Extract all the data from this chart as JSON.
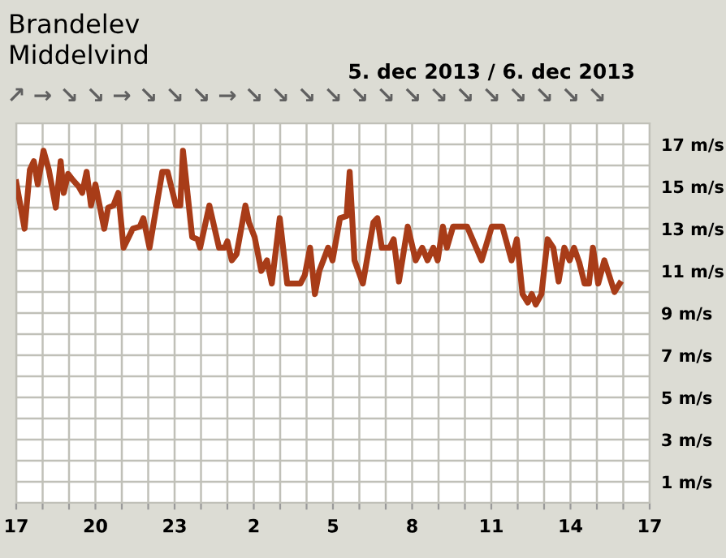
{
  "chart_data": {
    "type": "line",
    "title": "Brandelev",
    "subtitle": "Middelvind",
    "annotations": [
      "5. dec 2013 / 6. dec 2013",
      "↗",
      "→",
      "↘",
      "↘",
      "→",
      "↘",
      "↘",
      "↘",
      "→",
      "↘",
      "↘",
      "↘",
      "↘",
      "↘",
      "↘",
      "↘",
      "↘",
      "↘",
      "↘",
      "↘",
      "↘",
      "↘",
      "↘"
    ],
    "x": [
      "2013-12-05T17:00",
      "2013-12-05T17:19",
      "2013-12-05T17:31",
      "2013-12-05T17:40",
      "2013-12-05T17:49",
      "2013-12-05T18:02",
      "2013-12-05T18:14",
      "2013-12-05T18:30",
      "2013-12-05T18:41",
      "2013-12-05T18:48",
      "2013-12-05T18:58",
      "2013-12-05T19:09",
      "2013-12-05T19:22",
      "2013-12-05T19:30",
      "2013-12-05T19:40",
      "2013-12-05T19:50",
      "2013-12-05T20:00",
      "2013-12-05T20:20",
      "2013-12-05T20:29",
      "2013-12-05T20:41",
      "2013-12-05T20:52",
      "2013-12-05T21:04",
      "2013-12-05T21:25",
      "2013-12-05T21:41",
      "2013-12-05T21:49",
      "2013-12-05T22:03",
      "2013-12-05T22:32",
      "2013-12-05T22:44",
      "2013-12-05T23:03",
      "2013-12-05T23:13",
      "2013-12-05T23:19",
      "2013-12-05T23:40",
      "2013-12-05T23:52",
      "2013-12-05T23:58",
      "2013-12-06T00:19",
      "2013-12-06T00:41",
      "2013-12-06T00:54",
      "2013-12-06T01:00",
      "2013-12-06T01:10",
      "2013-12-06T01:21",
      "2013-12-06T01:41",
      "2013-12-06T01:49",
      "2013-12-06T02:02",
      "2013-12-06T02:17",
      "2013-12-06T02:30",
      "2013-12-06T02:41",
      "2013-12-06T02:59",
      "2013-12-06T03:16",
      "2013-12-06T03:46",
      "2013-12-06T03:56",
      "2013-12-06T04:08",
      "2013-12-06T04:19",
      "2013-12-06T04:29",
      "2013-12-06T04:49",
      "2013-12-06T04:59",
      "2013-12-06T05:16",
      "2013-12-06T05:31",
      "2013-12-06T05:38",
      "2013-12-06T05:49",
      "2013-12-06T06:08",
      "2013-12-06T06:32",
      "2013-12-06T06:41",
      "2013-12-06T06:51",
      "2013-12-06T07:09",
      "2013-12-06T07:18",
      "2013-12-06T07:30",
      "2013-12-06T07:50",
      "2013-12-06T08:08",
      "2013-12-06T08:23",
      "2013-12-06T08:35",
      "2013-12-06T08:48",
      "2013-12-06T08:58",
      "2013-12-06T09:10",
      "2013-12-06T09:19",
      "2013-12-06T09:33",
      "2013-12-06T10:05",
      "2013-12-06T10:38",
      "2013-12-06T11:01",
      "2013-12-06T11:25",
      "2013-12-06T11:46",
      "2013-12-06T11:58",
      "2013-12-06T12:11",
      "2013-12-06T12:23",
      "2013-12-06T12:32",
      "2013-12-06T12:41",
      "2013-12-06T12:54",
      "2013-12-06T13:08",
      "2013-12-06T13:21",
      "2013-12-06T13:33",
      "2013-12-06T13:46",
      "2013-12-06T13:58",
      "2013-12-06T14:08",
      "2013-12-06T14:20",
      "2013-12-06T14:32",
      "2013-12-06T14:42",
      "2013-12-06T14:51",
      "2013-12-06T15:03",
      "2013-12-06T15:17",
      "2013-12-06T15:40",
      "2013-12-06T15:52"
    ],
    "series": [
      {
        "color": "#a83c18",
        "values": [
          15.2,
          13.0,
          15.8,
          16.2,
          15.1,
          16.7,
          15.8,
          14.0,
          16.2,
          14.7,
          15.6,
          15.3,
          15.0,
          14.7,
          15.7,
          14.1,
          15.1,
          13.0,
          14.0,
          14.1,
          14.7,
          12.1,
          13.0,
          13.1,
          13.5,
          12.1,
          15.7,
          15.7,
          14.1,
          14.1,
          16.7,
          12.6,
          12.5,
          12.1,
          14.1,
          12.1,
          12.1,
          12.4,
          11.5,
          11.8,
          14.1,
          13.3,
          12.6,
          11.0,
          11.5,
          10.4,
          13.5,
          10.4,
          10.4,
          10.8,
          12.1,
          9.9,
          11.0,
          12.1,
          11.5,
          13.5,
          13.6,
          15.7,
          11.5,
          10.4,
          13.3,
          13.5,
          12.1,
          12.1,
          12.5,
          10.5,
          13.1,
          11.5,
          12.1,
          11.5,
          12.1,
          11.5,
          13.1,
          12.1,
          13.1,
          13.1,
          11.5,
          13.1,
          13.1,
          11.5,
          12.5,
          9.9,
          9.5,
          9.9,
          9.4,
          9.9,
          12.5,
          12.1,
          10.5,
          12.1,
          11.5,
          12.1,
          11.4,
          10.4,
          10.4,
          12.1,
          10.4,
          11.5,
          10.0,
          10.4
        ]
      }
    ],
    "xlim": [
      "2013-12-05T17:00",
      "2013-12-06T17:00"
    ],
    "xticks": [
      {
        "value": "2013-12-05T17:00",
        "label": "17"
      },
      {
        "value": "2013-12-05T18:00",
        "label": null
      },
      {
        "value": "2013-12-05T19:00",
        "label": null
      },
      {
        "value": "2013-12-05T20:00",
        "label": "20"
      },
      {
        "value": "2013-12-05T21:00",
        "label": null
      },
      {
        "value": "2013-12-05T22:00",
        "label": null
      },
      {
        "value": "2013-12-05T23:00",
        "label": "23"
      },
      {
        "value": "2013-12-06T00:00",
        "label": null
      },
      {
        "value": "2013-12-06T01:00",
        "label": null
      },
      {
        "value": "2013-12-06T02:00",
        "label": "2"
      },
      {
        "value": "2013-12-06T03:00",
        "label": null
      },
      {
        "value": "2013-12-06T04:00",
        "label": null
      },
      {
        "value": "2013-12-06T05:00",
        "label": "5"
      },
      {
        "value": "2013-12-06T06:00",
        "label": null
      },
      {
        "value": "2013-12-06T07:00",
        "label": null
      },
      {
        "value": "2013-12-06T08:00",
        "label": "8"
      },
      {
        "value": "2013-12-06T09:00",
        "label": null
      },
      {
        "value": "2013-12-06T10:00",
        "label": null
      },
      {
        "value": "2013-12-06T11:00",
        "label": "11"
      },
      {
        "value": "2013-12-06T12:00",
        "label": null
      },
      {
        "value": "2013-12-06T13:00",
        "label": null
      },
      {
        "value": "2013-12-06T14:00",
        "label": "14"
      },
      {
        "value": "2013-12-06T15:00",
        "label": null
      },
      {
        "value": "2013-12-06T16:00",
        "label": null
      },
      {
        "value": "2013-12-06T17:00",
        "label": "17"
      }
    ],
    "ylim": [
      0,
      18
    ],
    "yticks": [
      {
        "value": 0,
        "label": null
      },
      {
        "value": 1,
        "label": "1 m/s"
      },
      {
        "value": 2,
        "label": null
      },
      {
        "value": 3,
        "label": "3 m/s"
      },
      {
        "value": 4,
        "label": null
      },
      {
        "value": 5,
        "label": "5 m/s"
      },
      {
        "value": 6,
        "label": null
      },
      {
        "value": 7,
        "label": "7 m/s"
      },
      {
        "value": 8,
        "label": null
      },
      {
        "value": 9,
        "label": "9 m/s"
      },
      {
        "value": 10,
        "label": null
      },
      {
        "value": 11,
        "label": "11 m/s"
      },
      {
        "value": 12,
        "label": null
      },
      {
        "value": 13,
        "label": "13 m/s"
      },
      {
        "value": 14,
        "label": null
      },
      {
        "value": 15,
        "label": "15 m/s"
      },
      {
        "value": 16,
        "label": null
      },
      {
        "value": 17,
        "label": "17 m/s"
      },
      {
        "value": 18,
        "label": null
      }
    ],
    "grid": true,
    "line_style": "solid",
    "marker": "none"
  }
}
